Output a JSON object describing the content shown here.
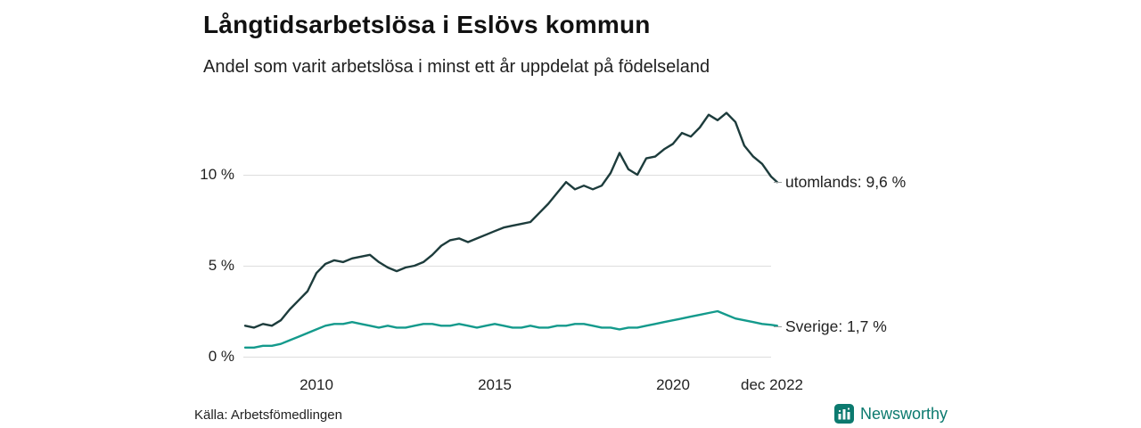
{
  "title": "Långtidsarbetslösa i Eslövs kommun",
  "subtitle": "Andel som varit arbetslösa i minst ett år uppdelat på födelseland",
  "source": "Källa: Arbetsfömedlingen",
  "branding": {
    "name": "Newsworthy",
    "color": "#0c7a6f"
  },
  "chart_data": {
    "type": "line",
    "title": "Långtidsarbetslösa i Eslövs kommun",
    "subtitle": "Andel som varit arbetslösa i minst ett år uppdelat på födelseland",
    "x_unit": "decimal_year",
    "xlim": [
      2008,
      2023.1
    ],
    "ylim": [
      0,
      14
    ],
    "grid": true,
    "legend_position": "right-end-labels",
    "y_ticks": [
      {
        "v": 0,
        "label": "0 %"
      },
      {
        "v": 5,
        "label": "5 %"
      },
      {
        "v": 10,
        "label": "10 %"
      }
    ],
    "x_ticks": [
      {
        "x": 2010,
        "label": "2010"
      },
      {
        "x": 2015,
        "label": "2015"
      },
      {
        "x": 2020,
        "label": "2020"
      },
      {
        "x": 2022.92,
        "label": "dec 2022"
      }
    ],
    "series": [
      {
        "name": "utomlands",
        "label": "utomlands: 9,6 %",
        "last_value": 9.6,
        "color": "#1d3c3c",
        "x": [
          2008,
          2008.25,
          2008.5,
          2008.75,
          2009,
          2009.25,
          2009.5,
          2009.75,
          2010,
          2010.25,
          2010.5,
          2010.75,
          2011,
          2011.25,
          2011.5,
          2011.75,
          2012,
          2012.25,
          2012.5,
          2012.75,
          2013,
          2013.25,
          2013.5,
          2013.75,
          2014,
          2014.25,
          2014.5,
          2014.75,
          2015,
          2015.25,
          2015.5,
          2015.75,
          2016,
          2016.25,
          2016.5,
          2016.75,
          2017,
          2017.25,
          2017.5,
          2017.75,
          2018,
          2018.25,
          2018.5,
          2018.75,
          2019,
          2019.25,
          2019.5,
          2019.75,
          2020,
          2020.25,
          2020.5,
          2020.75,
          2021,
          2021.25,
          2021.5,
          2021.75,
          2022,
          2022.25,
          2022.5,
          2022.75,
          2022.92
        ],
        "y": [
          1.7,
          1.6,
          1.8,
          1.7,
          2.0,
          2.6,
          3.1,
          3.6,
          4.6,
          5.1,
          5.3,
          5.2,
          5.4,
          5.5,
          5.6,
          5.2,
          4.9,
          4.7,
          4.9,
          5.0,
          5.2,
          5.6,
          6.1,
          6.4,
          6.5,
          6.3,
          6.5,
          6.7,
          6.9,
          7.1,
          7.2,
          7.3,
          7.4,
          7.9,
          8.4,
          9.0,
          9.6,
          9.2,
          9.4,
          9.2,
          9.4,
          10.1,
          11.2,
          10.3,
          10.0,
          10.9,
          11.0,
          11.4,
          11.7,
          12.3,
          12.1,
          12.6,
          13.3,
          13.0,
          13.4,
          12.9,
          11.6,
          11.0,
          10.6,
          9.9,
          9.6
        ]
      },
      {
        "name": "sverige",
        "label": "Sverige: 1,7 %",
        "last_value": 1.7,
        "color": "#149a8c",
        "x": [
          2008,
          2008.25,
          2008.5,
          2008.75,
          2009,
          2009.25,
          2009.5,
          2009.75,
          2010,
          2010.25,
          2010.5,
          2010.75,
          2011,
          2011.25,
          2011.5,
          2011.75,
          2012,
          2012.25,
          2012.5,
          2012.75,
          2013,
          2013.25,
          2013.5,
          2013.75,
          2014,
          2014.25,
          2014.5,
          2014.75,
          2015,
          2015.25,
          2015.5,
          2015.75,
          2016,
          2016.25,
          2016.5,
          2016.75,
          2017,
          2017.25,
          2017.5,
          2017.75,
          2018,
          2018.25,
          2018.5,
          2018.75,
          2019,
          2019.25,
          2019.5,
          2019.75,
          2020,
          2020.25,
          2020.5,
          2020.75,
          2021,
          2021.25,
          2021.5,
          2021.75,
          2022,
          2022.25,
          2022.5,
          2022.75,
          2022.92
        ],
        "y": [
          0.5,
          0.5,
          0.6,
          0.6,
          0.7,
          0.9,
          1.1,
          1.3,
          1.5,
          1.7,
          1.8,
          1.8,
          1.9,
          1.8,
          1.7,
          1.6,
          1.7,
          1.6,
          1.6,
          1.7,
          1.8,
          1.8,
          1.7,
          1.7,
          1.8,
          1.7,
          1.6,
          1.7,
          1.8,
          1.7,
          1.6,
          1.6,
          1.7,
          1.6,
          1.6,
          1.7,
          1.7,
          1.8,
          1.8,
          1.7,
          1.6,
          1.6,
          1.5,
          1.6,
          1.6,
          1.7,
          1.8,
          1.9,
          2.0,
          2.1,
          2.2,
          2.3,
          2.4,
          2.5,
          2.3,
          2.1,
          2.0,
          1.9,
          1.8,
          1.75,
          1.7
        ]
      }
    ]
  }
}
